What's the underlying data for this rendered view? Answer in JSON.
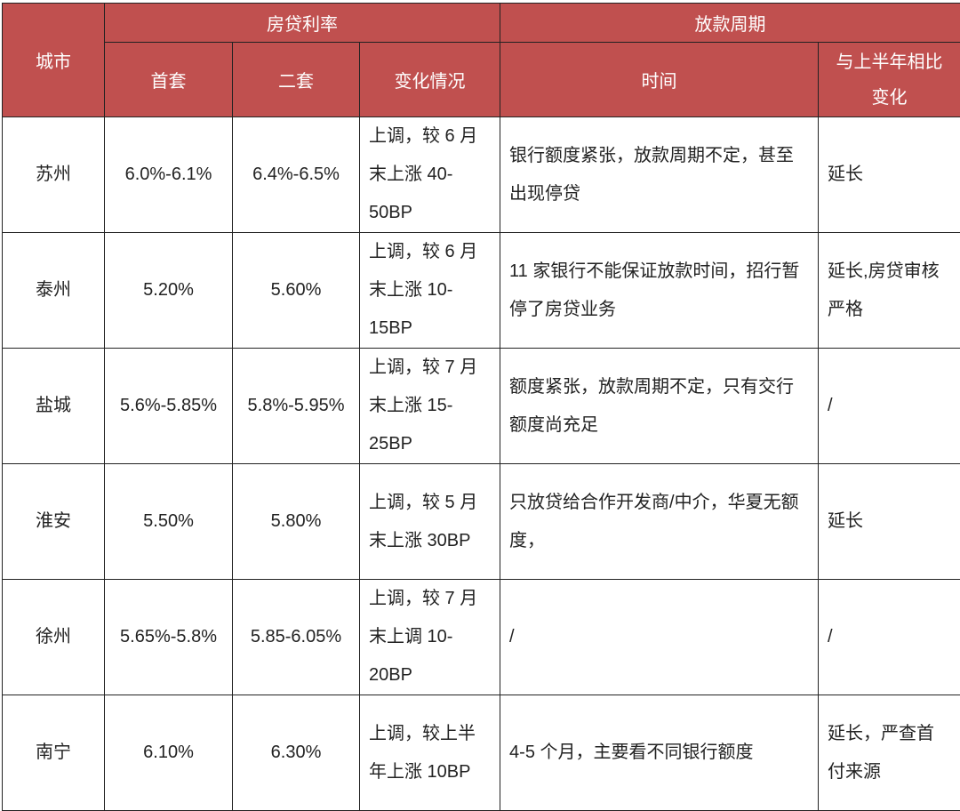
{
  "header": {
    "city": "城市",
    "loan_rate": "房贷利率",
    "first_home": "首套",
    "second_home": "二套",
    "change": "变化情况",
    "loan_period": "放款周期",
    "time": "时间",
    "vs_h1": "与上半年相比变化"
  },
  "header_color": "#c0504f",
  "rows": [
    {
      "city": "苏州",
      "first": "6.0%-6.1%",
      "second": "6.4%-6.5%",
      "change": "上调，较 6 月末上涨 40-50BP",
      "time": "银行额度紧张，放款周期不定，甚至出现停贷",
      "vs": "延长"
    },
    {
      "city": "泰州",
      "first": "5.20%",
      "second": "5.60%",
      "change": "上调，较 6 月末上涨 10-15BP",
      "time": "11 家银行不能保证放款时间，招行暂停了房贷业务",
      "vs": "延长,房贷审核严格"
    },
    {
      "city": "盐城",
      "first": "5.6%-5.85%",
      "second": "5.8%-5.95%",
      "change": "上调，较 7 月末上涨 15-25BP",
      "time": "额度紧张，放款周期不定，只有交行额度尚充足",
      "vs": "/"
    },
    {
      "city": "淮安",
      "first": "5.50%",
      "second": "5.80%",
      "change": "上调，较 5 月末上涨 30BP",
      "time": "只放贷给合作开发商/中介，华夏无额度，",
      "vs": "延长"
    },
    {
      "city": "徐州",
      "first": "5.65%-5.8%",
      "second": "5.85-6.05%",
      "change": "上调，较 7 月末上调 10-20BP",
      "time": "/",
      "vs": "/"
    },
    {
      "city": "南宁",
      "first": "6.10%",
      "second": "6.30%",
      "change": "上调，较上半年上涨 10BP",
      "time": "4-5 个月，主要看不同银行额度",
      "vs": "延长，严查首付来源"
    }
  ]
}
